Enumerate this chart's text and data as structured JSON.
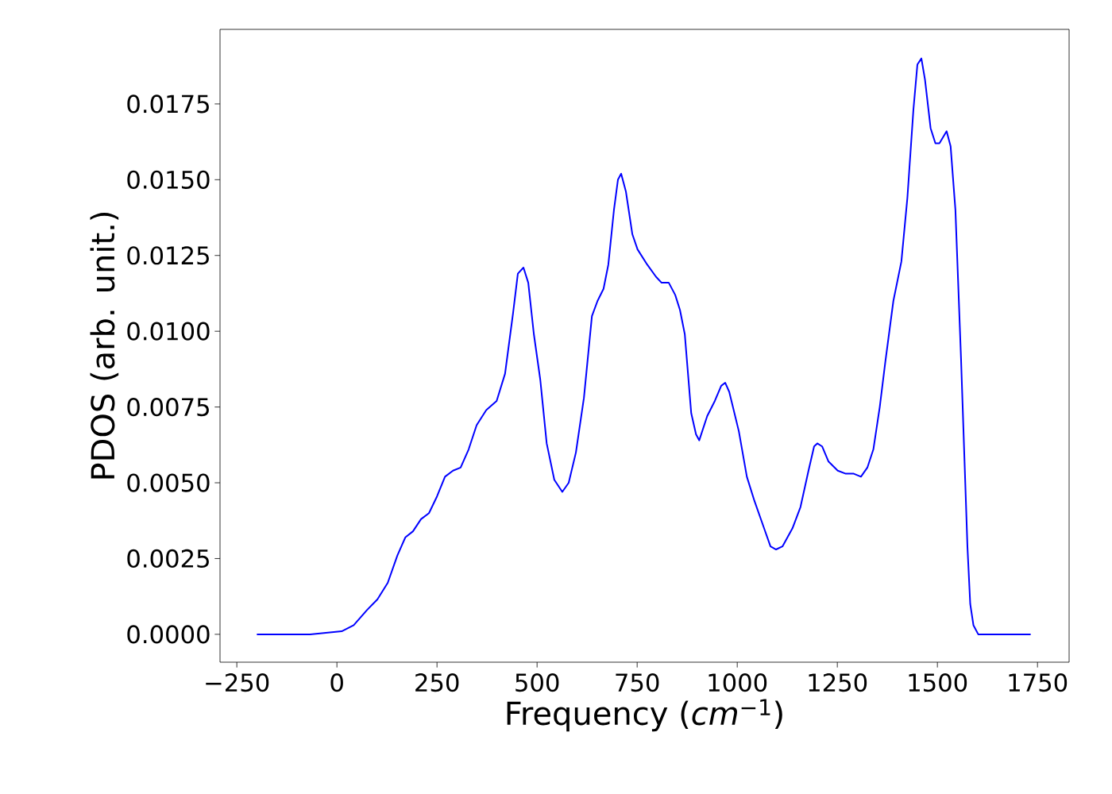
{
  "chart_data": {
    "type": "line",
    "xlabel": "Frequency (*cm*$^{−1}$)",
    "ylabel": "PDOS (arb. unit.)",
    "xlim": [
      -292,
      1829
    ],
    "ylim": [
      -0.00092,
      0.01996
    ],
    "xticks": [
      {
        "value": -250,
        "label": "−250"
      },
      0,
      250,
      500,
      750,
      1000,
      1250,
      1500,
      1750
    ],
    "yticks": [
      {
        "value": 0,
        "label": "0.0000"
      },
      0.0025,
      {
        "value": 0.005,
        "label": "0.0050"
      },
      {
        "value": 0.0075,
        "label": "0.0075"
      },
      {
        "value": 0.01,
        "label": "0.0100"
      },
      0.0125,
      {
        "value": 0.015,
        "label": "0.0150"
      },
      0.0175
    ],
    "x": [
      -200,
      -67,
      12,
      42,
      75,
      101,
      127,
      151,
      171,
      190,
      210,
      230,
      250,
      270,
      290,
      309,
      329,
      349,
      373,
      399,
      420,
      440,
      452,
      466,
      478,
      492,
      508,
      524,
      543,
      563,
      579,
      597,
      617,
      637,
      651,
      666,
      678,
      692,
      702,
      710,
      722,
      738,
      751,
      775,
      797,
      811,
      829,
      845,
      857,
      869,
      885,
      897,
      905,
      925,
      944,
      960,
      970,
      980,
      1004,
      1024,
      1043,
      1067,
      1083,
      1097,
      1113,
      1138,
      1158,
      1178,
      1192,
      1200,
      1212,
      1228,
      1251,
      1271,
      1291,
      1309,
      1325,
      1340,
      1356,
      1370,
      1390,
      1410,
      1425,
      1440,
      1450,
      1460,
      1469,
      1483,
      1495,
      1505,
      1523,
      1533,
      1545,
      1559,
      1575,
      1582,
      1590,
      1602,
      1733
    ],
    "series": [
      {
        "color": "#0000ff",
        "values": [
          0,
          0,
          0.0001,
          0.0003,
          0.0008,
          0.00115,
          0.0017,
          0.0026,
          0.0032,
          0.0034,
          0.0038,
          0.004,
          0.00455,
          0.0052,
          0.0054,
          0.0055,
          0.0061,
          0.0069,
          0.0074,
          0.0077,
          0.0086,
          0.0106,
          0.0119,
          0.0121,
          0.0116,
          0.0099,
          0.0084,
          0.0063,
          0.0051,
          0.0047,
          0.005,
          0.006,
          0.0078,
          0.0105,
          0.011,
          0.0114,
          0.0122,
          0.014,
          0.015,
          0.0152,
          0.0146,
          0.0132,
          0.0127,
          0.0122,
          0.0118,
          0.0116,
          0.0116,
          0.0112,
          0.0107,
          0.0099,
          0.0073,
          0.0066,
          0.0064,
          0.0072,
          0.0077,
          0.0082,
          0.0083,
          0.008,
          0.0067,
          0.0052,
          0.0044,
          0.0035,
          0.0029,
          0.0028,
          0.0029,
          0.0035,
          0.0042,
          0.0054,
          0.0062,
          0.0063,
          0.0062,
          0.0057,
          0.0054,
          0.0053,
          0.0053,
          0.0052,
          0.0055,
          0.0061,
          0.0075,
          0.009,
          0.011,
          0.0123,
          0.0144,
          0.0173,
          0.0188,
          0.019,
          0.0183,
          0.0167,
          0.0162,
          0.0162,
          0.0166,
          0.0161,
          0.014,
          0.0091,
          0.0029,
          0.001,
          0.0003,
          0,
          0
        ]
      }
    ]
  }
}
